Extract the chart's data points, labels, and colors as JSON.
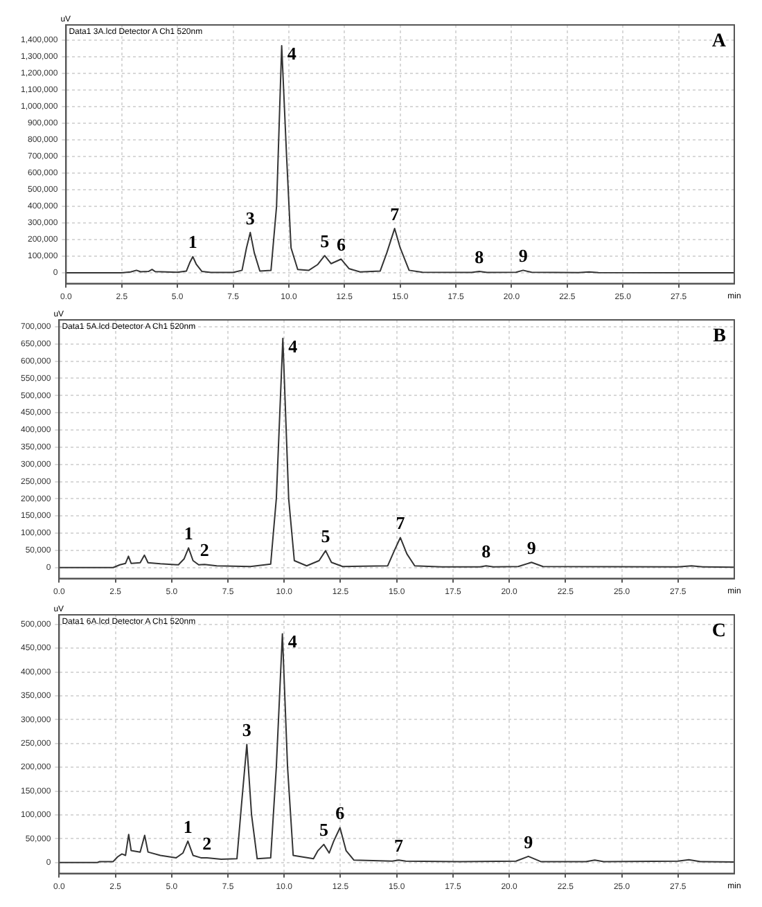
{
  "chart_data": [
    {
      "type": "line",
      "title": "A",
      "subtitle": "Data1 3A.lcd Detector A Ch1 520nm",
      "xlabel": "min",
      "ylabel": "uV",
      "grid": true,
      "legend": false,
      "marker": "none",
      "line_style": "solid",
      "xlim": [
        0,
        30
      ],
      "xticks": [
        {
          "value": 0,
          "label": "0.0"
        },
        {
          "value": 2.5,
          "label": "2.5"
        },
        {
          "value": 5,
          "label": "5.0"
        },
        {
          "value": 7.5,
          "label": "7.5"
        },
        {
          "value": 10,
          "label": "10.0"
        },
        {
          "value": 12.5,
          "label": "12.5"
        },
        {
          "value": 15,
          "label": "15.0"
        },
        {
          "value": 17.5,
          "label": "17.5"
        },
        {
          "value": 20,
          "label": "20.0"
        },
        {
          "value": 22.5,
          "label": "22.5"
        },
        {
          "value": 25,
          "label": "25.0"
        },
        {
          "value": 27.5,
          "label": "27.5"
        }
      ],
      "ylim": [
        -65000,
        1490000
      ],
      "yticks": [
        {
          "value": 0,
          "label": "0"
        },
        {
          "value": 100000,
          "label": "100,000"
        },
        {
          "value": 200000,
          "label": "200,000"
        },
        {
          "value": 300000,
          "label": "300,000"
        },
        {
          "value": 400000,
          "label": "400,000"
        },
        {
          "value": 500000,
          "label": "500,000"
        },
        {
          "value": 600000,
          "label": "600,000"
        },
        {
          "value": 700000,
          "label": "700,000"
        },
        {
          "value": 800000,
          "label": "800,000"
        },
        {
          "value": 900000,
          "label": "900,000"
        },
        {
          "value": 1000000,
          "label": "1,000,000"
        },
        {
          "value": 1100000,
          "label": "1,100,000"
        },
        {
          "value": 1200000,
          "label": "1,200,000"
        },
        {
          "value": 1300000,
          "label": "1,300,000"
        },
        {
          "value": 1400000,
          "label": "1,400,000"
        }
      ],
      "series": [
        {
          "color": "#333333",
          "x": [
            0,
            2.5,
            2.9,
            3.16,
            3.35,
            3.7,
            3.86,
            4.0,
            4.5,
            5.0,
            5.4,
            5.55,
            5.69,
            5.85,
            6.1,
            6.5,
            7.5,
            7.9,
            8.1,
            8.27,
            8.45,
            8.7,
            9.2,
            9.45,
            9.68,
            9.9,
            10.1,
            10.4,
            10.9,
            11.3,
            11.61,
            11.9,
            12.35,
            12.7,
            13.2,
            14.1,
            14.4,
            14.75,
            15.0,
            15.4,
            16,
            18.2,
            18.55,
            18.9,
            20.2,
            20.52,
            20.9,
            23.0,
            23.48,
            23.9,
            30
          ],
          "values": [
            0,
            0,
            5000,
            15000,
            6000,
            8000,
            20000,
            7000,
            5000,
            3000,
            10000,
            60000,
            97000,
            50000,
            8000,
            2000,
            2000,
            15000,
            150000,
            242000,
            120000,
            10000,
            15000,
            400000,
            1365000,
            700000,
            150000,
            20000,
            15000,
            50000,
            103000,
            55000,
            82000,
            25000,
            5000,
            10000,
            120000,
            266000,
            150000,
            15000,
            3000,
            2000,
            8000,
            2000,
            3000,
            15000,
            3000,
            1000,
            5000,
            1000,
            0
          ]
        }
      ],
      "annotations": [
        {
          "text": "1",
          "x": 5.69,
          "y": 97000
        },
        {
          "text": "3",
          "x": 8.27,
          "y": 242000
        },
        {
          "text": "4",
          "x": 9.68,
          "y": 1365000
        },
        {
          "text": "5",
          "x": 11.61,
          "y": 103000
        },
        {
          "text": "6",
          "x": 12.35,
          "y": 82000
        },
        {
          "text": "7",
          "x": 14.75,
          "y": 266000
        },
        {
          "text": "8",
          "x": 18.55,
          "y": 8000
        },
        {
          "text": "9",
          "x": 20.52,
          "y": 15000
        }
      ]
    },
    {
      "type": "line",
      "title": "B",
      "subtitle": "Data1 5A.lcd Detector A Ch1 520nm",
      "xlabel": "min",
      "ylabel": "uV",
      "grid": true,
      "legend": false,
      "marker": "none",
      "line_style": "solid",
      "xlim": [
        0,
        30
      ],
      "xticks": [
        {
          "value": 0,
          "label": "0.0"
        },
        {
          "value": 2.5,
          "label": "2.5"
        },
        {
          "value": 5,
          "label": "5.0"
        },
        {
          "value": 7.5,
          "label": "7.5"
        },
        {
          "value": 10,
          "label": "10.0"
        },
        {
          "value": 12.5,
          "label": "12.5"
        },
        {
          "value": 15,
          "label": "15.0"
        },
        {
          "value": 17.5,
          "label": "17.5"
        },
        {
          "value": 20,
          "label": "20.0"
        },
        {
          "value": 22.5,
          "label": "22.5"
        },
        {
          "value": 25,
          "label": "25.0"
        },
        {
          "value": 27.5,
          "label": "27.5"
        }
      ],
      "ylim": [
        -32000,
        720000
      ],
      "yticks": [
        {
          "value": 0,
          "label": "0"
        },
        {
          "value": 50000,
          "label": "50,000"
        },
        {
          "value": 100000,
          "label": "100,000"
        },
        {
          "value": 150000,
          "label": "150,000"
        },
        {
          "value": 200000,
          "label": "200,000"
        },
        {
          "value": 250000,
          "label": "250,000"
        },
        {
          "value": 300000,
          "label": "300,000"
        },
        {
          "value": 350000,
          "label": "350,000"
        },
        {
          "value": 400000,
          "label": "400,000"
        },
        {
          "value": 450000,
          "label": "450,000"
        },
        {
          "value": 500000,
          "label": "500,000"
        },
        {
          "value": 550000,
          "label": "550,000"
        },
        {
          "value": 600000,
          "label": "600,000"
        },
        {
          "value": 650000,
          "label": "650,000"
        },
        {
          "value": 700000,
          "label": "700,000"
        }
      ],
      "series": [
        {
          "color": "#333333",
          "x": [
            0,
            2.4,
            2.7,
            2.95,
            3.08,
            3.2,
            3.6,
            3.79,
            3.95,
            4.5,
            5.3,
            5.55,
            5.75,
            5.95,
            6.2,
            6.46,
            7.0,
            8.5,
            9.4,
            9.65,
            9.94,
            10.2,
            10.45,
            11.0,
            11.55,
            11.84,
            12.1,
            12.6,
            14.6,
            14.9,
            15.16,
            15.45,
            15.8,
            17,
            18.7,
            18.97,
            19.3,
            20.4,
            20.99,
            21.5,
            27.5,
            28.1,
            28.6,
            30
          ],
          "values": [
            0,
            0,
            8000,
            12000,
            33000,
            12000,
            14000,
            36000,
            14000,
            11000,
            8000,
            25000,
            57000,
            20000,
            8000,
            9000,
            5000,
            3000,
            10000,
            200000,
            666000,
            200000,
            20000,
            5000,
            20000,
            49000,
            15000,
            3000,
            5000,
            50000,
            87000,
            40000,
            5000,
            2000,
            2000,
            5000,
            2000,
            3000,
            15000,
            3000,
            2000,
            5000,
            2000,
            1000
          ]
        }
      ],
      "annotations": [
        {
          "text": "1",
          "x": 5.75,
          "y": 57000
        },
        {
          "text": "2",
          "x": 6.46,
          "y": 9000
        },
        {
          "text": "4",
          "x": 9.94,
          "y": 666000
        },
        {
          "text": "5",
          "x": 11.84,
          "y": 49000
        },
        {
          "text": "7",
          "x": 15.16,
          "y": 87000
        },
        {
          "text": "8",
          "x": 18.97,
          "y": 5000
        },
        {
          "text": "9",
          "x": 20.99,
          "y": 15000
        }
      ]
    },
    {
      "type": "line",
      "title": "C",
      "subtitle": "Data1 6A.lcd Detector A Ch1 520nm",
      "xlabel": "min",
      "ylabel": "uV",
      "grid": true,
      "legend": false,
      "marker": "none",
      "line_style": "solid",
      "xlim": [
        0,
        30
      ],
      "xticks": [
        {
          "value": 0,
          "label": "0.0"
        },
        {
          "value": 2.5,
          "label": "2.5"
        },
        {
          "value": 5,
          "label": "5.0"
        },
        {
          "value": 7.5,
          "label": "7.5"
        },
        {
          "value": 10,
          "label": "10.0"
        },
        {
          "value": 12.5,
          "label": "12.5"
        },
        {
          "value": 15,
          "label": "15.0"
        },
        {
          "value": 17.5,
          "label": "17.5"
        },
        {
          "value": 20,
          "label": "20.0"
        },
        {
          "value": 22.5,
          "label": "22.5"
        },
        {
          "value": 25,
          "label": "25.0"
        },
        {
          "value": 27.5,
          "label": "27.5"
        }
      ],
      "ylim": [
        -23000,
        520000
      ],
      "yticks": [
        {
          "value": 0,
          "label": "0"
        },
        {
          "value": 50000,
          "label": "50,000"
        },
        {
          "value": 100000,
          "label": "100,000"
        },
        {
          "value": 150000,
          "label": "150,000"
        },
        {
          "value": 200000,
          "label": "200,000"
        },
        {
          "value": 250000,
          "label": "250,000"
        },
        {
          "value": 300000,
          "label": "300,000"
        },
        {
          "value": 350000,
          "label": "350,000"
        },
        {
          "value": 400000,
          "label": "400,000"
        },
        {
          "value": 450000,
          "label": "450,000"
        },
        {
          "value": 500000,
          "label": "500,000"
        }
      ],
      "series": [
        {
          "color": "#333333",
          "x": [
            0,
            1.7,
            1.8,
            2.4,
            2.6,
            2.79,
            2.95,
            3.09,
            3.2,
            3.6,
            3.8,
            3.95,
            4.5,
            5.2,
            5.5,
            5.72,
            5.95,
            6.3,
            6.57,
            7.2,
            7.9,
            8.1,
            8.34,
            8.55,
            8.8,
            9.4,
            9.65,
            9.92,
            10.15,
            10.4,
            11.3,
            11.5,
            11.76,
            12.0,
            12.2,
            12.48,
            12.75,
            13.1,
            14.8,
            15.09,
            15.4,
            17.8,
            20.3,
            20.85,
            21.4,
            23.4,
            23.8,
            24.2,
            27.5,
            27.98,
            28.5,
            30
          ],
          "values": [
            0,
            0,
            2000,
            2000,
            12000,
            18000,
            15000,
            59000,
            25000,
            22000,
            57000,
            22000,
            15000,
            10000,
            20000,
            45000,
            15000,
            10000,
            10000,
            7000,
            8000,
            120000,
            248000,
            100000,
            8000,
            10000,
            200000,
            480000,
            200000,
            15000,
            8000,
            25000,
            38000,
            20000,
            45000,
            73000,
            25000,
            5000,
            3000,
            5000,
            3000,
            2000,
            3000,
            13000,
            2000,
            2000,
            5000,
            2000,
            3000,
            6000,
            2000,
            1000
          ]
        }
      ],
      "annotations": [
        {
          "text": "1",
          "x": 5.72,
          "y": 45000
        },
        {
          "text": "2",
          "x": 6.57,
          "y": 10000
        },
        {
          "text": "3",
          "x": 8.34,
          "y": 248000
        },
        {
          "text": "4",
          "x": 9.92,
          "y": 480000
        },
        {
          "text": "5",
          "x": 11.76,
          "y": 38000
        },
        {
          "text": "6",
          "x": 12.48,
          "y": 73000
        },
        {
          "text": "7",
          "x": 15.09,
          "y": 5000
        },
        {
          "text": "9",
          "x": 20.85,
          "y": 13000
        }
      ]
    }
  ]
}
